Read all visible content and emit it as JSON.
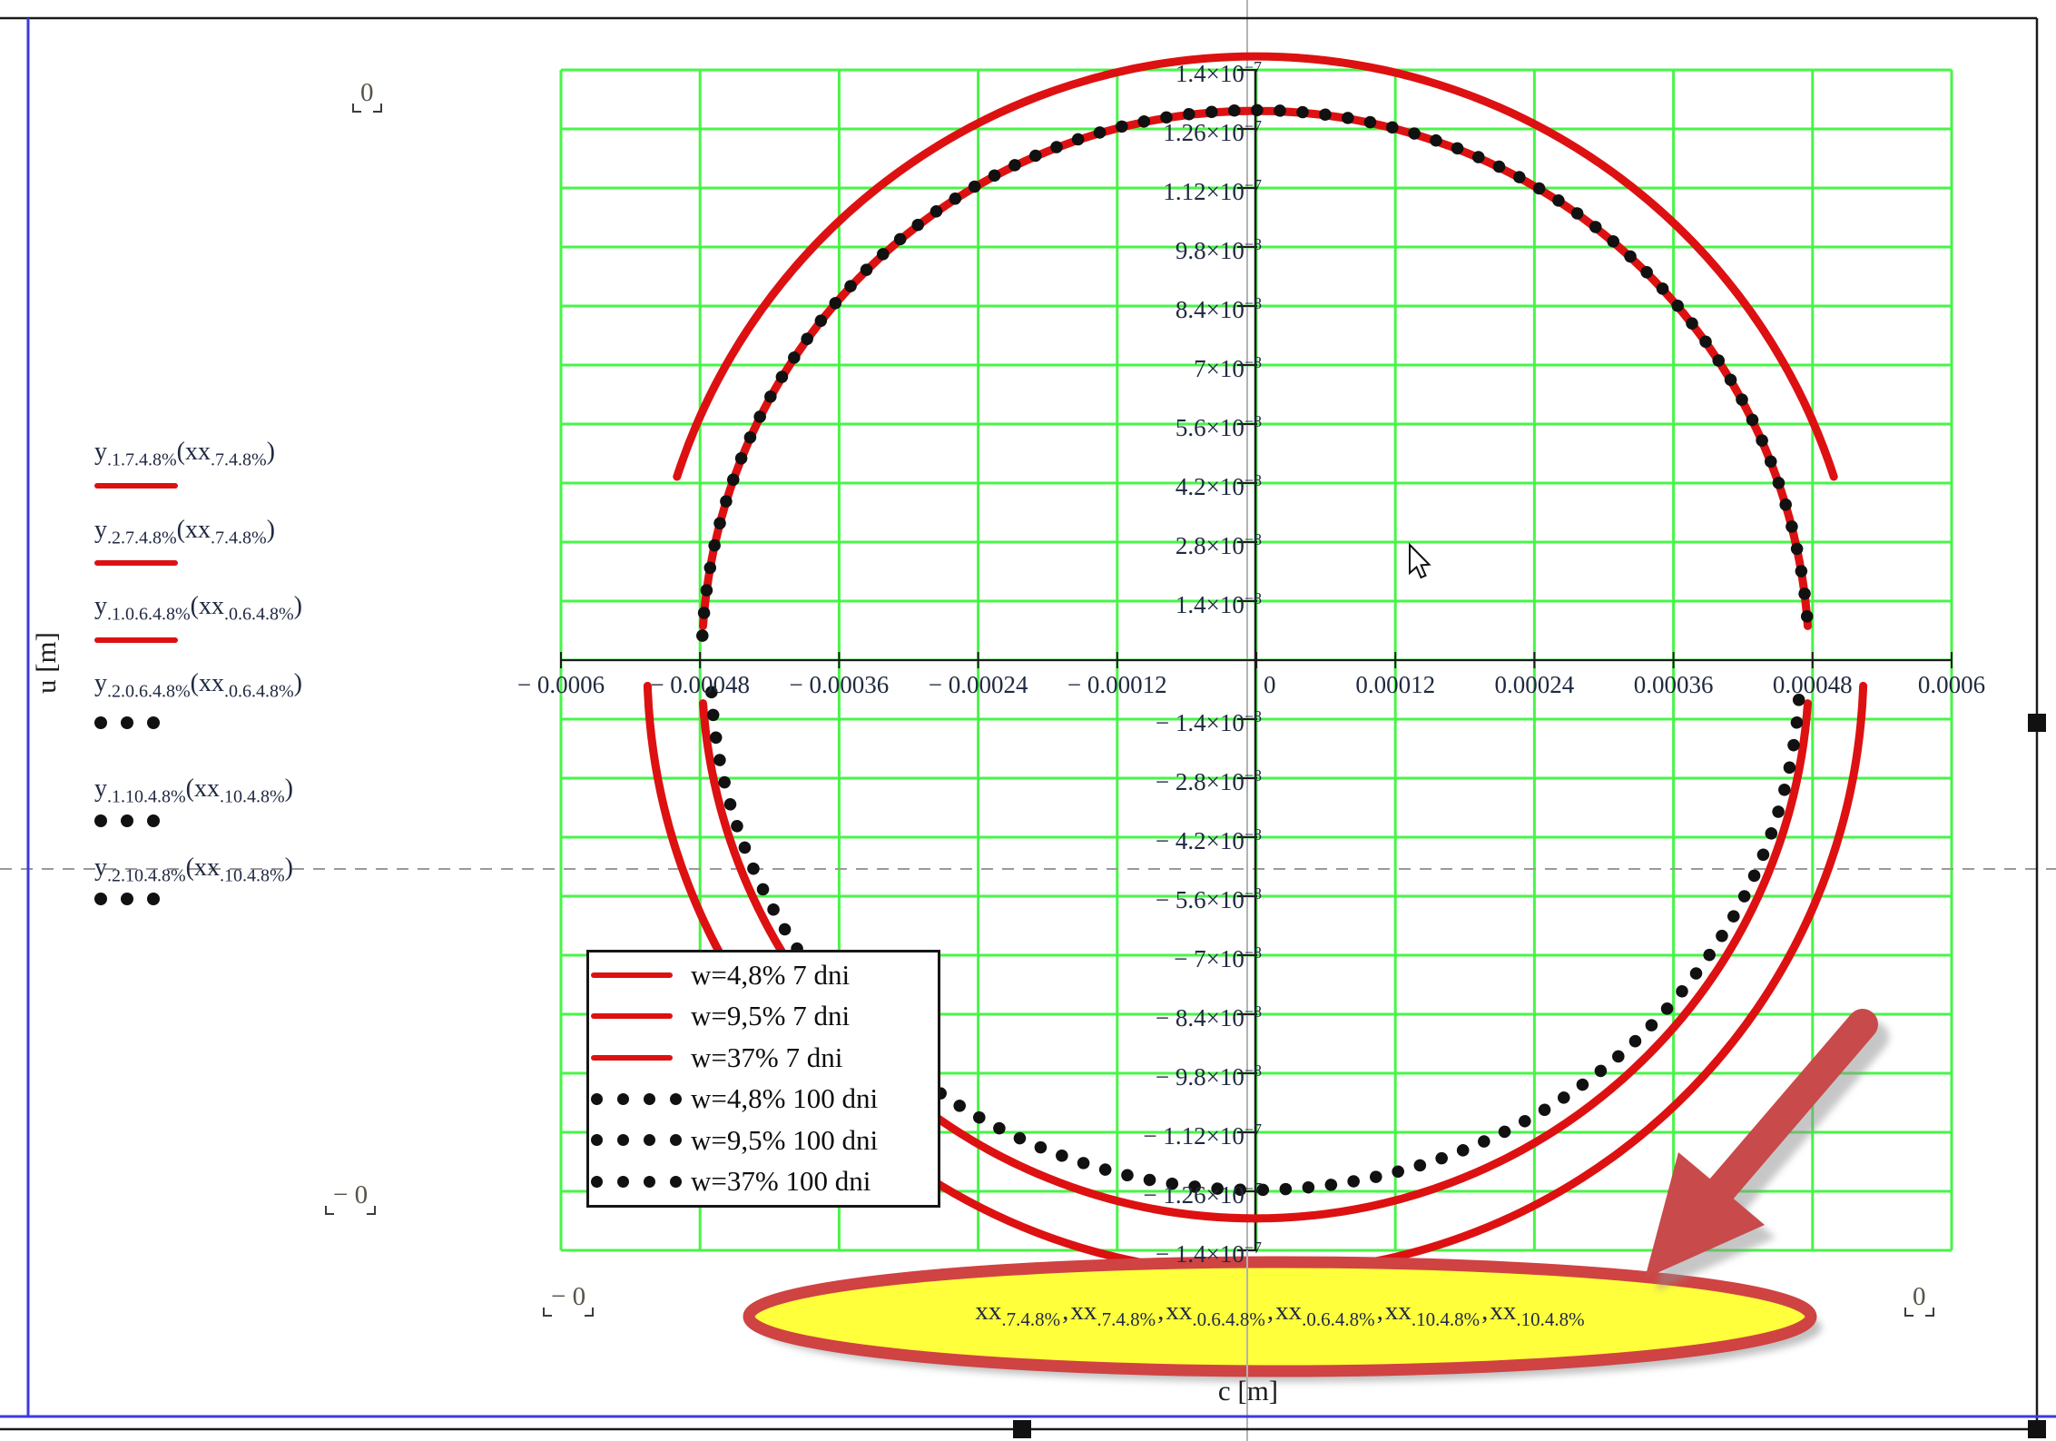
{
  "axis_titles": {
    "x": "c [m]",
    "y": "u [m]"
  },
  "origin_label": "0",
  "placeholders": {
    "top_left": "0",
    "mid_left": "− 0",
    "bottom_left": "− 0",
    "bottom_right": "0"
  },
  "x_ticks": [
    "− 0.0006",
    "− 0.00048",
    "− 0.00036",
    "− 0.00024",
    "− 0.00012",
    "0",
    "0.00012",
    "0.00024",
    "0.00036",
    "0.00048",
    "0.0006"
  ],
  "y_ticks": [
    {
      "m": "1.4×10",
      "e": "−7"
    },
    {
      "m": "1.26×10",
      "e": "−7"
    },
    {
      "m": "1.12×10",
      "e": "−7"
    },
    {
      "m": "9.8×10",
      "e": "−8"
    },
    {
      "m": "8.4×10",
      "e": "−8"
    },
    {
      "m": "7×10",
      "e": "−8"
    },
    {
      "m": "5.6×10",
      "e": "−8"
    },
    {
      "m": "4.2×10",
      "e": "−8"
    },
    {
      "m": "2.8×10",
      "e": "−8"
    },
    {
      "m": "1.4×10",
      "e": "−8"
    },
    {
      "m": "− 1.4×10",
      "e": "−8"
    },
    {
      "m": "− 2.8×10",
      "e": "−8"
    },
    {
      "m": "− 4.2×10",
      "e": "−8"
    },
    {
      "m": "− 5.6×10",
      "e": "−8"
    },
    {
      "m": "− 7×10",
      "e": "−8"
    },
    {
      "m": "− 8.4×10",
      "e": "−8"
    },
    {
      "m": "− 9.8×10",
      "e": "−8"
    },
    {
      "m": "− 1.12×10",
      "e": "−7"
    },
    {
      "m": "− 1.26×10",
      "e": "−7"
    },
    {
      "m": "− 1.4×10",
      "e": "−7"
    }
  ],
  "traces": [
    {
      "base": "y",
      "y_sub": ".1.7.4.8%",
      "arg": "xx",
      "arg_sub": ".7.4.8%",
      "marker": "red-line"
    },
    {
      "base": "y",
      "y_sub": ".2.7.4.8%",
      "arg": "xx",
      "arg_sub": ".7.4.8%",
      "marker": "red-line"
    },
    {
      "base": "y",
      "y_sub": ".1.0.6.4.8%",
      "arg": "xx",
      "arg_sub": ".0.6.4.8%",
      "marker": "red-line"
    },
    {
      "base": "y",
      "y_sub": ".2.0.6.4.8%",
      "arg": "xx",
      "arg_sub": ".0.6.4.8%",
      "marker": "dots"
    },
    {
      "base": "y",
      "y_sub": ".1.10.4.8%",
      "arg": "xx",
      "arg_sub": ".10.4.8%",
      "marker": "dots"
    },
    {
      "base": "y",
      "y_sub": ".2.10.4.8%",
      "arg": "xx",
      "arg_sub": ".10.4.8%",
      "marker": "dots"
    }
  ],
  "legend": [
    {
      "label": "w=4,8% 7 dni",
      "marker": "red-line"
    },
    {
      "label": "w=9,5% 7 dni",
      "marker": "red-line"
    },
    {
      "label": "w=37% 7 dni",
      "marker": "red-line"
    },
    {
      "label": "w=4,8% 100 dni",
      "marker": "dots"
    },
    {
      "label": "w=9,5% 100 dni",
      "marker": "dots"
    },
    {
      "label": "w=37% 100 dni",
      "marker": "dots"
    }
  ],
  "highlight": {
    "base": "xx",
    "terms": [
      ".7.4.8%",
      ".7.4.8%",
      ".0.6.4.8%",
      ".0.6.4.8%",
      ".10.4.8%",
      ".10.4.8%"
    ],
    "separator": ","
  },
  "colors": {
    "grid": "#47f547",
    "curve_red": "#dd1111",
    "curve_dots": "#111111",
    "page_margin_blue": "#3b3bdd",
    "highlight_fill": "#ffff3c",
    "highlight_border": "#cf4343",
    "arrow_red": "#c84a4a"
  },
  "chart_data": {
    "type": "line",
    "title": "",
    "xlabel": "c [m]",
    "ylabel": "u [m]",
    "xlim": [
      -0.0006,
      0.0006
    ],
    "ylim": [
      -1.4e-07,
      1.4e-07
    ],
    "x_tick_step": 0.00012,
    "y_tick_step": 1.4e-08,
    "grid": true,
    "legend_position": "inside-bottom-left",
    "series": [
      {
        "name": "w=4,8% 7 dni",
        "style": "solid",
        "color": "#dd1111",
        "shape": "ellipse",
        "center": [
          0,
          0
        ],
        "rx": 0.000525,
        "ry": 1.47e-07
      },
      {
        "name": "w=9,5% 7 dni",
        "style": "solid",
        "color": "#dd1111",
        "shape": "ellipse",
        "center": [
          0,
          0
        ],
        "rx": 0.000478,
        "ry": 1.34e-07,
        "note": "visually coincides with w=37% 7 dni"
      },
      {
        "name": "w=37% 7 dni",
        "style": "solid",
        "color": "#dd1111",
        "shape": "ellipse",
        "center": [
          0,
          0
        ],
        "rx": 0.000478,
        "ry": 1.34e-07
      },
      {
        "name": "w=4,8% 100 dni",
        "style": "dotted",
        "color": "#111111",
        "shape": "ellipse-asymmetric",
        "center": [
          0,
          0
        ],
        "rx": 0.000472,
        "ry_upper": 1.34e-07,
        "ry_lower": 1.25e-07,
        "note": "upper half overlays 7 dni inner circle, lower half flatter"
      },
      {
        "name": "w=9,5% 100 dni",
        "style": "dotted",
        "color": "#111111",
        "shape": "ellipse-asymmetric",
        "center": [
          0,
          0
        ],
        "rx": 0.000472,
        "ry_upper": 1.34e-07,
        "ry_lower": 1.25e-07
      },
      {
        "name": "w=37% 100 dni",
        "style": "dotted",
        "color": "#111111",
        "shape": "ellipse-asymmetric",
        "center": [
          0,
          0
        ],
        "rx": 0.000472,
        "ry_upper": 1.34e-07,
        "ry_lower": 1.25e-07
      }
    ],
    "annotations": {
      "highlighted_expression": "xx.7.4.8%, xx.7.4.8%, xx.0.6.4.8%, xx.0.6.4.8%, xx.10.4.8%, xx.10.4.8%",
      "arrow": "large red arrow pointing at highlighted x-axis argument list"
    }
  }
}
